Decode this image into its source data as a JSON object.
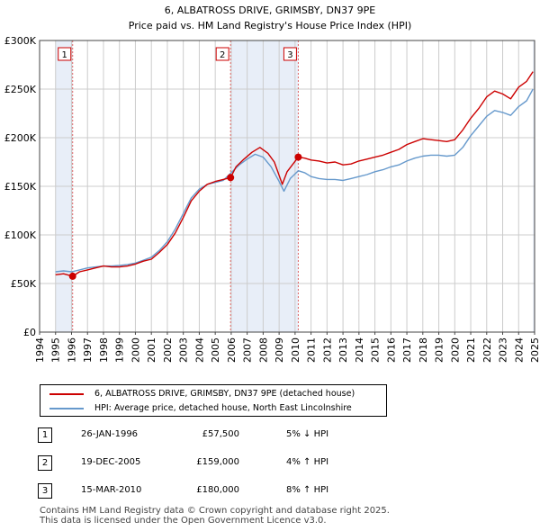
{
  "chart_data": {
    "type": "line",
    "title": "6, ALBATROSS DRIVE, GRIMSBY, DN37 9PE",
    "subtitle": "Price paid vs. HM Land Registry's House Price Index (HPI)",
    "xlabel": "",
    "ylabel": "",
    "xlim": [
      1994,
      2025
    ],
    "ylim": [
      0,
      300000
    ],
    "y_ticks": [
      0,
      50000,
      100000,
      150000,
      200000,
      250000,
      300000
    ],
    "y_tick_labels": [
      "£0",
      "£50K",
      "£100K",
      "£150K",
      "£200K",
      "£250K",
      "£300K"
    ],
    "x_ticks": [
      "1994",
      "1995",
      "1996",
      "1997",
      "1998",
      "1999",
      "2000",
      "2001",
      "2002",
      "2003",
      "2004",
      "2005",
      "2006",
      "2007",
      "2008",
      "2009",
      "2010",
      "2011",
      "2012",
      "2013",
      "2014",
      "2015",
      "2016",
      "2017",
      "2018",
      "2019",
      "2020",
      "2021",
      "2022",
      "2023",
      "2024",
      "2025"
    ],
    "grid": true,
    "shaded_ranges": [
      {
        "start": 1995.0,
        "end": 1996.07
      },
      {
        "start": 2005.96,
        "end": 2010.2
      },
      {
        "start": 2024.9,
        "end": 2025.0
      }
    ],
    "series": [
      {
        "name": "6, ALBATROSS DRIVE, GRIMSBY, DN37 9PE (detached house)",
        "color": "#cc0000",
        "x": [
          1995.0,
          1995.5,
          1996.07,
          1996.5,
          1997,
          1997.5,
          1998,
          1998.5,
          1999,
          1999.5,
          2000,
          2000.5,
          2001,
          2001.5,
          2002,
          2002.5,
          2003,
          2003.5,
          2004,
          2004.5,
          2005,
          2005.5,
          2005.96,
          2006.3,
          2006.8,
          2007.3,
          2007.8,
          2008.3,
          2008.7,
          2009.2,
          2009.5,
          2010.2,
          2010.6,
          2011,
          2011.5,
          2012,
          2012.5,
          2013,
          2013.5,
          2014,
          2014.5,
          2015,
          2015.5,
          2016,
          2016.5,
          2017,
          2017.5,
          2018,
          2018.5,
          2019,
          2019.5,
          2020,
          2020.5,
          2021,
          2021.5,
          2022,
          2022.5,
          2023,
          2023.5,
          2024,
          2024.5,
          2024.9
        ],
        "y": [
          59000,
          60000,
          57500,
          62000,
          64000,
          66000,
          68000,
          67000,
          67000,
          68000,
          70000,
          73000,
          75000,
          82000,
          90000,
          102000,
          118000,
          135000,
          145000,
          152000,
          155000,
          157000,
          159000,
          170000,
          178000,
          185000,
          190000,
          184000,
          175000,
          152000,
          165000,
          180000,
          179000,
          177000,
          176000,
          174000,
          175000,
          172000,
          173000,
          176000,
          178000,
          180000,
          182000,
          185000,
          188000,
          193000,
          196000,
          199000,
          198000,
          197000,
          196000,
          198000,
          208000,
          220000,
          230000,
          242000,
          248000,
          245000,
          240000,
          252000,
          258000,
          268000
        ]
      },
      {
        "name": "HPI: Average price, detached house, North East Lincolnshire",
        "color": "#6699cc",
        "x": [
          1995.0,
          1995.5,
          1996.0,
          1996.5,
          1997,
          1997.5,
          1998,
          1998.5,
          1999,
          1999.5,
          2000,
          2000.5,
          2001,
          2001.5,
          2002,
          2002.5,
          2003,
          2003.5,
          2004,
          2004.5,
          2005,
          2005.5,
          2006,
          2006.5,
          2007,
          2007.5,
          2008,
          2008.5,
          2009,
          2009.3,
          2009.7,
          2010.2,
          2010.6,
          2011,
          2011.5,
          2012,
          2012.5,
          2013,
          2013.5,
          2014,
          2014.5,
          2015,
          2015.5,
          2016,
          2016.5,
          2017,
          2017.5,
          2018,
          2018.5,
          2019,
          2019.5,
          2020,
          2020.5,
          2021,
          2021.5,
          2022,
          2022.5,
          2023,
          2023.5,
          2024,
          2024.5,
          2024.9
        ],
        "y": [
          62000,
          63000,
          62000,
          64000,
          66000,
          67000,
          68000,
          68000,
          68500,
          69500,
          71000,
          74000,
          77000,
          84000,
          93000,
          106000,
          122000,
          138000,
          147000,
          152000,
          154000,
          156000,
          164000,
          172000,
          178000,
          183000,
          180000,
          170000,
          155000,
          145000,
          158000,
          166000,
          164000,
          160000,
          158000,
          157000,
          157000,
          156000,
          158000,
          160000,
          162000,
          165000,
          167000,
          170000,
          172000,
          176000,
          179000,
          181000,
          182000,
          182000,
          181000,
          182000,
          190000,
          202000,
          212000,
          222000,
          228000,
          226000,
          223000,
          232000,
          238000,
          250000
        ]
      }
    ],
    "sales": [
      {
        "label": "1",
        "x": 1996.07,
        "price": 57500
      },
      {
        "label": "2",
        "x": 2005.96,
        "price": 159000
      },
      {
        "label": "3",
        "x": 2010.2,
        "price": 180000
      }
    ]
  },
  "legend": {
    "property_label": "6, ALBATROSS DRIVE, GRIMSBY, DN37 9PE (detached house)",
    "hpi_label": "HPI: Average price, detached house, North East Lincolnshire"
  },
  "sales_table": [
    {
      "num": "1",
      "date": "26-JAN-1996",
      "price": "£57,500",
      "hpi": "5% ↓ HPI"
    },
    {
      "num": "2",
      "date": "19-DEC-2005",
      "price": "£159,000",
      "hpi": "4% ↑ HPI"
    },
    {
      "num": "3",
      "date": "15-MAR-2010",
      "price": "£180,000",
      "hpi": "8% ↑ HPI"
    }
  ],
  "footer": {
    "line1": "Contains HM Land Registry data © Crown copyright and database right 2025.",
    "line2": "This data is licensed under the Open Government Licence v3.0."
  }
}
